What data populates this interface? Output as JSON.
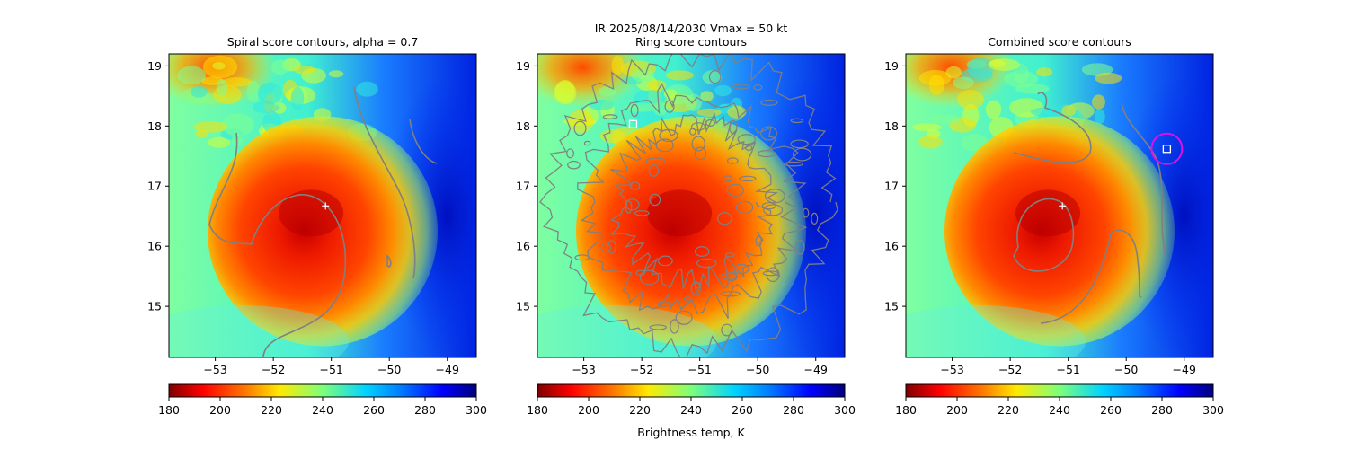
{
  "figure": {
    "suptitle_line1": "IR  2025/08/14/2030    Vmax = 50 kt",
    "colorbar_label": "Brightness temp, K"
  },
  "chart_data": [
    {
      "type": "heatmap",
      "title": "Spiral score contours, alpha =  0.7",
      "xlim": [
        -53.8,
        -48.5
      ],
      "ylim": [
        14.15,
        19.2
      ],
      "xticks": [
        -53,
        -52,
        -51,
        -50,
        -49
      ],
      "yticks": [
        15,
        16,
        17,
        18,
        19
      ],
      "xtick_labels": [
        "−53",
        "−52",
        "−51",
        "−50",
        "−49"
      ],
      "ytick_labels": [
        "15",
        "16",
        "17",
        "18",
        "19"
      ],
      "center_marker": {
        "symbol": "+",
        "x": -51.1,
        "y": 16.67
      },
      "contours": "spiral",
      "colorbar": {
        "min": 180,
        "max": 300,
        "ticks": [
          180,
          200,
          220,
          240,
          260,
          280,
          300
        ],
        "colormap": "jet_r"
      }
    },
    {
      "type": "heatmap",
      "title": "Ring score contours",
      "xlim": [
        -53.8,
        -48.5
      ],
      "ylim": [
        14.15,
        19.2
      ],
      "xticks": [
        -53,
        -52,
        -51,
        -50,
        -49
      ],
      "yticks": [
        15,
        16,
        17,
        18,
        19
      ],
      "xtick_labels": [
        "−53",
        "−52",
        "−51",
        "−50",
        "−49"
      ],
      "ytick_labels": [
        "15",
        "16",
        "17",
        "18",
        "19"
      ],
      "center_marker": {
        "symbol": "square",
        "x": -52.15,
        "y": 18.03
      },
      "contours": "ring",
      "colorbar": {
        "min": 180,
        "max": 300,
        "ticks": [
          180,
          200,
          220,
          240,
          260,
          280,
          300
        ],
        "colormap": "jet_r"
      }
    },
    {
      "type": "heatmap",
      "title": "Combined score contours",
      "xlim": [
        -53.8,
        -48.5
      ],
      "ylim": [
        14.15,
        19.2
      ],
      "xticks": [
        -53,
        -52,
        -51,
        -50,
        -49
      ],
      "yticks": [
        15,
        16,
        17,
        18,
        19
      ],
      "xtick_labels": [
        "−53",
        "−52",
        "−51",
        "−50",
        "−49"
      ],
      "ytick_labels": [
        "15",
        "16",
        "17",
        "18",
        "19"
      ],
      "center_marker": {
        "symbol": "+",
        "x": -51.1,
        "y": 16.67
      },
      "best_center": {
        "symbol": "square",
        "x": -49.3,
        "y": 17.62,
        "circle_color": "#e010e0"
      },
      "contours": "combined",
      "colorbar": {
        "min": 180,
        "max": 300,
        "ticks": [
          180,
          200,
          220,
          240,
          260,
          280,
          300
        ],
        "colormap": "jet_r"
      }
    }
  ],
  "colors": {
    "contour": "#808080",
    "marker": "#ffffff",
    "highlight": "#e010e0"
  }
}
